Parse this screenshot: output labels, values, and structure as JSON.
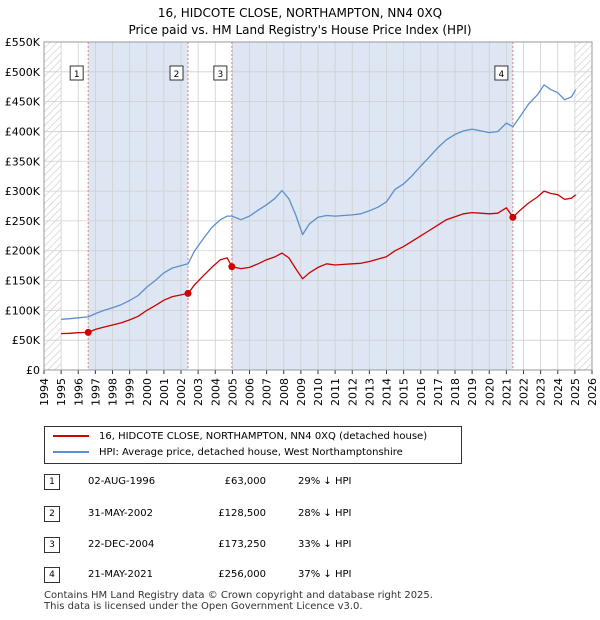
{
  "header": {
    "title": "16, HIDCOTE CLOSE, NORTHAMPTON, NN4 0XQ",
    "subtitle": "Price paid vs. HM Land Registry's House Price Index (HPI)"
  },
  "colors": {
    "property": "#cc0000",
    "hpi": "#5b8fce",
    "band": "#dde6f2",
    "grid": "#d0d0d0",
    "marker_line": "#e08080"
  },
  "chart_data": {
    "type": "line",
    "title": "Price paid vs. HM Land Registry's House Price Index (HPI)",
    "xlabel": "",
    "ylabel": "",
    "xlim": [
      1994,
      2026
    ],
    "ylim": [
      0,
      550000
    ],
    "x_ticks": [
      "1994",
      "1995",
      "1996",
      "1997",
      "1998",
      "1999",
      "2000",
      "2001",
      "2002",
      "2003",
      "2004",
      "2005",
      "2006",
      "2007",
      "2008",
      "2009",
      "2010",
      "2011",
      "2012",
      "2013",
      "2014",
      "2015",
      "2016",
      "2017",
      "2018",
      "2019",
      "2020",
      "2021",
      "2022",
      "2023",
      "2024",
      "2025",
      "2026"
    ],
    "y_ticks": [
      {
        "value": 0,
        "label": "£0"
      },
      {
        "value": 50000,
        "label": "£50K"
      },
      {
        "value": 100000,
        "label": "£100K"
      },
      {
        "value": 150000,
        "label": "£150K"
      },
      {
        "value": 200000,
        "label": "£200K"
      },
      {
        "value": 250000,
        "label": "£250K"
      },
      {
        "value": 300000,
        "label": "£300K"
      },
      {
        "value": 350000,
        "label": "£350K"
      },
      {
        "value": 400000,
        "label": "£400K"
      },
      {
        "value": 450000,
        "label": "£450K"
      },
      {
        "value": 500000,
        "label": "£500K"
      },
      {
        "value": 550000,
        "label": "£550K"
      }
    ],
    "grid": true,
    "hatched_regions": [
      [
        1994,
        1995
      ],
      [
        2025,
        2026
      ]
    ],
    "shaded_bands": [
      [
        1996.58,
        2002.41
      ],
      [
        2004.97,
        2021.38
      ]
    ],
    "series": [
      {
        "name": "16, HIDCOTE CLOSE, NORTHAMPTON, NN4 0XQ (detached house)",
        "color": "#cc0000",
        "x": [
          1995.0,
          1995.5,
          1996.0,
          1996.58,
          1997.0,
          1997.5,
          1998.0,
          1998.5,
          1999.0,
          1999.5,
          2000.0,
          2000.5,
          2001.0,
          2001.5,
          2002.0,
          2002.41,
          2002.8,
          2003.3,
          2003.8,
          2004.3,
          2004.7,
          2004.97,
          2005.5,
          2006.0,
          2006.5,
          2007.0,
          2007.5,
          2007.9,
          2008.3,
          2008.7,
          2009.1,
          2009.5,
          2010.0,
          2010.5,
          2011.0,
          2011.5,
          2012.0,
          2012.5,
          2013.0,
          2013.5,
          2014.0,
          2014.5,
          2015.0,
          2015.5,
          2016.0,
          2016.5,
          2017.0,
          2017.5,
          2018.0,
          2018.5,
          2019.0,
          2019.5,
          2020.0,
          2020.5,
          2021.0,
          2021.38,
          2021.8,
          2022.3,
          2022.8,
          2023.2,
          2023.6,
          2024.0,
          2024.4,
          2024.8,
          2025.05
        ],
        "y": [
          61000,
          61500,
          62500,
          63000,
          68000,
          72000,
          75500,
          79000,
          84000,
          90000,
          100000,
          108000,
          117000,
          123000,
          126000,
          128500,
          143000,
          158000,
          172000,
          185000,
          188000,
          173250,
          170000,
          172000,
          178000,
          185000,
          190000,
          196000,
          188000,
          170000,
          153000,
          163000,
          172000,
          178000,
          176000,
          177000,
          178000,
          179000,
          182000,
          186000,
          190000,
          200000,
          207000,
          216000,
          225000,
          234000,
          243000,
          252000,
          257000,
          262000,
          264000,
          263000,
          262000,
          263000,
          272000,
          256000,
          268000,
          280000,
          290000,
          300000,
          296000,
          294000,
          286000,
          288000,
          294000
        ]
      },
      {
        "name": "HPI: Average price, detached house, West Northamptonshire",
        "color": "#5b8fce",
        "x": [
          1995.0,
          1995.5,
          1996.0,
          1996.58,
          1997.0,
          1997.5,
          1998.0,
          1998.5,
          1999.0,
          1999.5,
          2000.0,
          2000.5,
          2001.0,
          2001.5,
          2002.0,
          2002.41,
          2002.8,
          2003.3,
          2003.8,
          2004.3,
          2004.7,
          2004.97,
          2005.5,
          2006.0,
          2006.5,
          2007.0,
          2007.5,
          2007.9,
          2008.3,
          2008.7,
          2009.1,
          2009.5,
          2010.0,
          2010.5,
          2011.0,
          2011.5,
          2012.0,
          2012.5,
          2013.0,
          2013.5,
          2014.0,
          2014.5,
          2015.0,
          2015.5,
          2016.0,
          2016.5,
          2017.0,
          2017.5,
          2018.0,
          2018.5,
          2019.0,
          2019.5,
          2020.0,
          2020.5,
          2021.0,
          2021.38,
          2021.8,
          2022.3,
          2022.8,
          2023.2,
          2023.6,
          2024.0,
          2024.4,
          2024.8,
          2025.05
        ],
        "y": [
          85000,
          86000,
          87500,
          89000,
          94500,
          100000,
          104500,
          109500,
          116500,
          125000,
          139000,
          150000,
          163000,
          171000,
          175000,
          178000,
          200000,
          220000,
          239000,
          252000,
          258000,
          258000,
          252000,
          258000,
          268000,
          277000,
          288000,
          301000,
          287000,
          260000,
          227000,
          245000,
          256000,
          259000,
          258000,
          259000,
          260000,
          262000,
          267000,
          273000,
          282000,
          303000,
          312000,
          326000,
          342000,
          357000,
          373000,
          386000,
          395000,
          401000,
          404000,
          401000,
          398000,
          400000,
          414000,
          408000,
          425000,
          446000,
          461000,
          478000,
          470000,
          465000,
          453000,
          458000,
          470000
        ]
      }
    ],
    "sales": [
      {
        "label": "1",
        "x": 1996.58,
        "y": 63000
      },
      {
        "label": "2",
        "x": 2002.41,
        "y": 128500
      },
      {
        "label": "3",
        "x": 2004.97,
        "y": 173250
      },
      {
        "label": "4",
        "x": 2021.38,
        "y": 256000
      }
    ]
  },
  "legend": {
    "property_label": "16, HIDCOTE CLOSE, NORTHAMPTON, NN4 0XQ (detached house)",
    "hpi_label": "HPI: Average price, detached house, West Northamptonshire"
  },
  "transactions": [
    {
      "num": "1",
      "date": "02-AUG-1996",
      "price": "£63,000",
      "hpi": "29% ↓ HPI"
    },
    {
      "num": "2",
      "date": "31-MAY-2002",
      "price": "£128,500",
      "hpi": "28% ↓ HPI"
    },
    {
      "num": "3",
      "date": "22-DEC-2004",
      "price": "£173,250",
      "hpi": "33% ↓ HPI"
    },
    {
      "num": "4",
      "date": "21-MAY-2021",
      "price": "£256,000",
      "hpi": "37% ↓ HPI"
    }
  ],
  "footer": {
    "line1": "Contains HM Land Registry data © Crown copyright and database right 2025.",
    "line2": "This data is licensed under the Open Government Licence v3.0."
  }
}
